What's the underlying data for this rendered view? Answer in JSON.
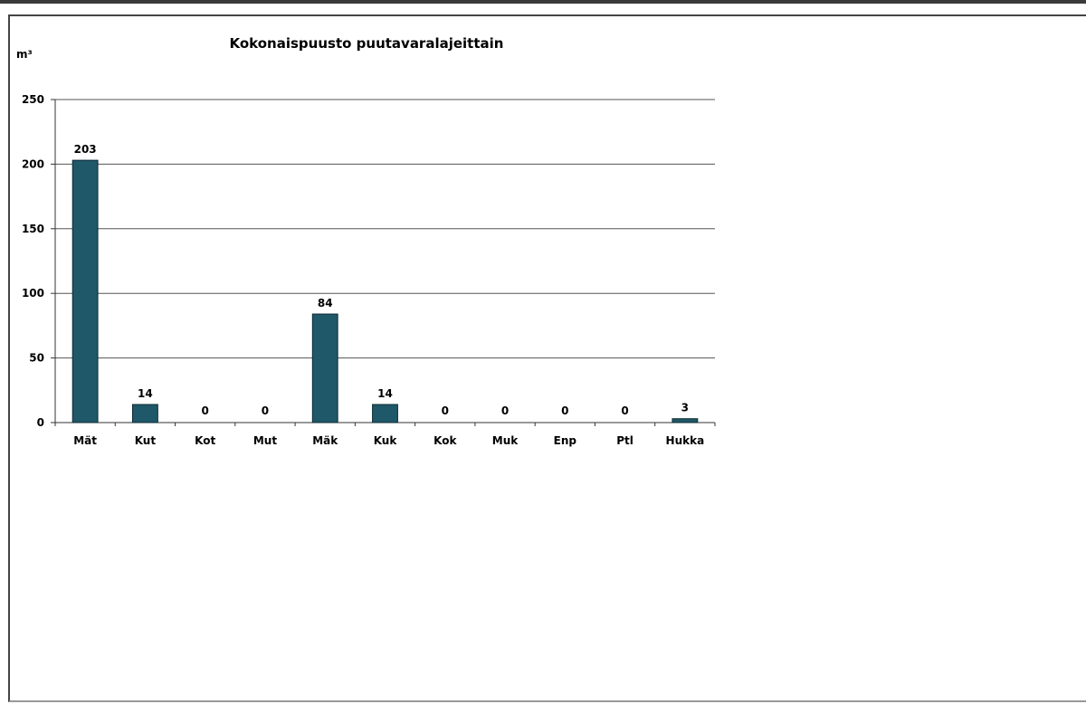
{
  "chart_data": {
    "type": "bar",
    "title": "Kokonaispuusto puutavaralajeittain",
    "ylabel": "m³",
    "xlabel": "",
    "categories": [
      "Mät",
      "Kut",
      "Kot",
      "Mut",
      "Mäk",
      "Kuk",
      "Kok",
      "Muk",
      "Enp",
      "Ptl",
      "Hukka"
    ],
    "values": [
      203,
      14,
      0,
      0,
      84,
      14,
      0,
      0,
      0,
      0,
      3
    ],
    "data_labels": [
      "203",
      "14",
      "0",
      "0",
      "84",
      "14",
      "0",
      "0",
      "0",
      "0",
      "3"
    ],
    "ylim": [
      0,
      250
    ],
    "yticks": [
      0,
      50,
      100,
      150,
      200,
      250
    ],
    "grid": true,
    "legend": "none",
    "bar_color": "#1f5868"
  }
}
